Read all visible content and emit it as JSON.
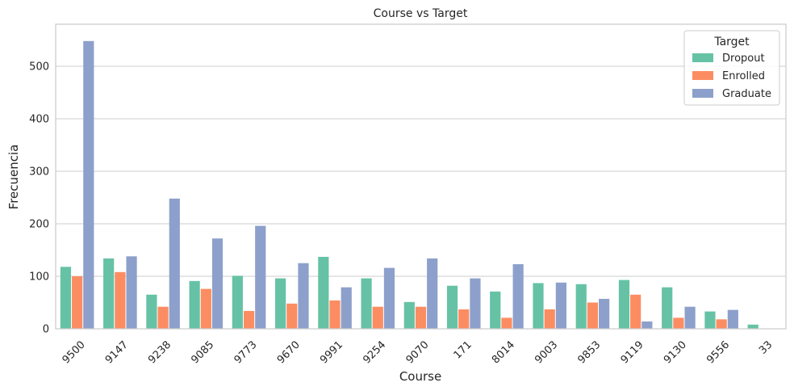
{
  "chart_data": {
    "type": "bar",
    "title": "Course vs Target",
    "xlabel": "Course",
    "ylabel": "Frecuencia",
    "ylim": [
      0,
      580
    ],
    "yticks": [
      0,
      100,
      200,
      300,
      400,
      500
    ],
    "ytick_labels": [
      "0",
      "100",
      "200",
      "300",
      "400",
      "500"
    ],
    "grid": "horizontal",
    "legend": {
      "title": "Target",
      "placement": "top-right"
    },
    "categories": [
      "9500",
      "9147",
      "9238",
      "9085",
      "9773",
      "9670",
      "9991",
      "9254",
      "9070",
      "171",
      "8014",
      "9003",
      "9853",
      "9119",
      "9130",
      "9556",
      "33"
    ],
    "series": [
      {
        "name": "Dropout",
        "color": "#66c2a5",
        "values": [
          118,
          134,
          65,
          91,
          101,
          96,
          137,
          96,
          51,
          82,
          71,
          87,
          85,
          93,
          79,
          33,
          8
        ]
      },
      {
        "name": "Enrolled",
        "color": "#fc8d62",
        "values": [
          100,
          108,
          42,
          76,
          34,
          48,
          54,
          42,
          42,
          37,
          21,
          37,
          50,
          65,
          21,
          18,
          0
        ]
      },
      {
        "name": "Graduate",
        "color": "#8da0cb",
        "values": [
          548,
          138,
          248,
          172,
          196,
          125,
          79,
          116,
          134,
          96,
          123,
          88,
          57,
          14,
          42,
          36,
          0
        ]
      }
    ]
  }
}
